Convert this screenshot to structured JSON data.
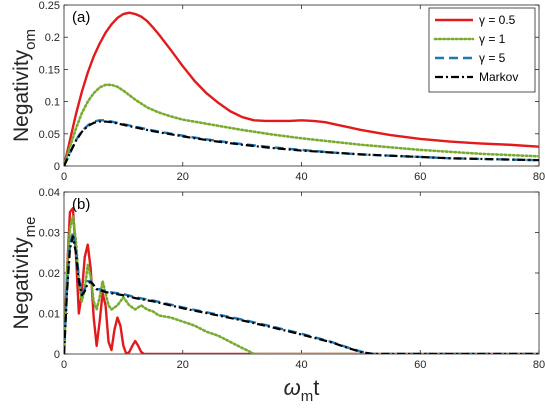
{
  "chart_data": [
    {
      "type": "line",
      "panel_label": "(a)",
      "ylabel_main": "Negativity",
      "ylabel_sub": "om",
      "xlim": [
        0,
        80
      ],
      "ylim": [
        0,
        0.25
      ],
      "xticks": [
        0,
        20,
        40,
        60,
        80
      ],
      "yticks": [
        0,
        0.05,
        0.1,
        0.15,
        0.2,
        0.25
      ],
      "ytick_labels": [
        "0",
        "0.05",
        "0.1",
        "0.15",
        "0.2",
        "0.25"
      ],
      "grid": false,
      "legend": {
        "placement": "top-right",
        "entries": [
          {
            "symbol": "γ",
            "text": " = 0.5"
          },
          {
            "symbol": "γ",
            "text": " = 1"
          },
          {
            "symbol": "γ",
            "text": " = 5"
          },
          {
            "symbol": "",
            "text": "Markov"
          }
        ]
      },
      "series": [
        {
          "style": "solid",
          "color": "#e31a1c",
          "x": [
            0,
            1,
            2,
            3,
            4,
            5,
            6,
            7,
            8,
            9,
            10,
            11,
            12,
            13,
            14,
            15,
            16,
            18,
            20,
            22,
            24,
            26,
            28,
            30,
            32,
            34,
            36,
            38,
            40,
            42,
            44,
            46,
            48,
            50,
            55,
            60,
            65,
            70,
            75,
            80
          ],
          "y": [
            0,
            0.04,
            0.08,
            0.115,
            0.145,
            0.17,
            0.19,
            0.207,
            0.22,
            0.23,
            0.236,
            0.238,
            0.236,
            0.232,
            0.225,
            0.215,
            0.204,
            0.18,
            0.155,
            0.132,
            0.113,
            0.098,
            0.085,
            0.076,
            0.071,
            0.07,
            0.07,
            0.07,
            0.071,
            0.07,
            0.068,
            0.064,
            0.06,
            0.056,
            0.048,
            0.042,
            0.038,
            0.035,
            0.033,
            0.03
          ]
        },
        {
          "style": "dotted",
          "color": "#77ac30",
          "x": [
            0,
            1,
            2,
            3,
            4,
            5,
            6,
            7,
            8,
            9,
            10,
            12,
            14,
            16,
            18,
            20,
            25,
            30,
            35,
            40,
            45,
            50,
            55,
            60,
            65,
            70,
            75,
            80
          ],
          "y": [
            0,
            0.03,
            0.058,
            0.082,
            0.1,
            0.113,
            0.122,
            0.126,
            0.126,
            0.123,
            0.117,
            0.103,
            0.091,
            0.083,
            0.077,
            0.072,
            0.064,
            0.056,
            0.049,
            0.043,
            0.038,
            0.033,
            0.029,
            0.025,
            0.022,
            0.019,
            0.017,
            0.015
          ]
        },
        {
          "style": "dashed",
          "color": "#1f77b4",
          "x": [
            0,
            1,
            2,
            3,
            4,
            5,
            6,
            7,
            8,
            10,
            12,
            15,
            20,
            25,
            30,
            35,
            40,
            45,
            50,
            55,
            60,
            65,
            70,
            75,
            80
          ],
          "y": [
            0,
            0.02,
            0.04,
            0.054,
            0.063,
            0.069,
            0.071,
            0.071,
            0.069,
            0.065,
            0.061,
            0.055,
            0.047,
            0.04,
            0.034,
            0.029,
            0.025,
            0.021,
            0.018,
            0.016,
            0.014,
            0.012,
            0.011,
            0.01,
            0.009
          ]
        },
        {
          "style": "dashdot",
          "color": "#000000",
          "x": [
            0,
            1,
            2,
            3,
            4,
            5,
            6,
            7,
            8,
            10,
            12,
            15,
            20,
            25,
            30,
            35,
            40,
            45,
            50,
            55,
            60,
            65,
            70,
            75,
            80
          ],
          "y": [
            0,
            0.02,
            0.039,
            0.053,
            0.062,
            0.067,
            0.069,
            0.069,
            0.068,
            0.064,
            0.06,
            0.054,
            0.046,
            0.039,
            0.033,
            0.028,
            0.024,
            0.021,
            0.018,
            0.016,
            0.014,
            0.012,
            0.011,
            0.01,
            0.009
          ]
        }
      ]
    },
    {
      "type": "line",
      "panel_label": "(b)",
      "ylabel_main": "Negativity",
      "ylabel_sub": "me",
      "xlabel_main": "ω",
      "xlabel_sub": "m",
      "xlabel_tail": "t",
      "xlim": [
        0,
        80
      ],
      "ylim": [
        0,
        0.04
      ],
      "xticks": [
        0,
        20,
        40,
        60,
        80
      ],
      "yticks": [
        0,
        0.01,
        0.02,
        0.03,
        0.04
      ],
      "ytick_labels": [
        "0",
        "0.01",
        "0.02",
        "0.03",
        "0.04"
      ],
      "grid": false,
      "series": [
        {
          "style": "solid",
          "color": "#e31a1c",
          "x": [
            0,
            0.5,
            1,
            1.5,
            2,
            2.5,
            3,
            3.5,
            4,
            4.5,
            5,
            5.5,
            6,
            6.5,
            7,
            7.5,
            8,
            8.5,
            9,
            9.5,
            10,
            10.5,
            11,
            11.5,
            12,
            12.5,
            13,
            13.5,
            14,
            20,
            30,
            40,
            50,
            60,
            70,
            80
          ],
          "y": [
            0,
            0.02,
            0.035,
            0.036,
            0.025,
            0.01,
            0.015,
            0.024,
            0.027,
            0.021,
            0.009,
            0.002,
            0.008,
            0.015,
            0.012,
            0.003,
            0.001,
            0.006,
            0.009,
            0.007,
            0.002,
            0,
            0.0005,
            0.002,
            0.0032,
            0.002,
            0.0005,
            0,
            0,
            0,
            0,
            0,
            0,
            0,
            0,
            0
          ]
        },
        {
          "style": "dotted",
          "color": "#77ac30",
          "x": [
            0,
            0.5,
            1,
            1.5,
            2,
            2.5,
            3,
            3.5,
            4,
            4.5,
            5,
            5.5,
            6,
            6.5,
            7,
            7.5,
            8,
            9,
            10,
            11,
            12,
            13,
            14,
            15,
            16,
            18,
            20,
            22,
            24,
            26,
            28,
            30,
            31,
            32,
            40,
            50,
            60,
            70,
            80
          ],
          "y": [
            0,
            0.02,
            0.031,
            0.034,
            0.028,
            0.018,
            0.013,
            0.016,
            0.022,
            0.019,
            0.013,
            0.011,
            0.014,
            0.018,
            0.015,
            0.012,
            0.011,
            0.012,
            0.014,
            0.012,
            0.011,
            0.012,
            0.011,
            0.0105,
            0.0095,
            0.009,
            0.008,
            0.007,
            0.0055,
            0.0045,
            0.003,
            0.0015,
            0.0008,
            0,
            0,
            0,
            0,
            0,
            0
          ]
        },
        {
          "style": "dashed",
          "color": "#1f77b4",
          "x": [
            0,
            0.5,
            1,
            1.5,
            2,
            2.5,
            3,
            3.5,
            4,
            4.5,
            5,
            5.5,
            6,
            7,
            8,
            10,
            12,
            15,
            20,
            25,
            30,
            35,
            40,
            45,
            48,
            50,
            52,
            60,
            70,
            80
          ],
          "y": [
            0,
            0.016,
            0.027,
            0.03,
            0.026,
            0.019,
            0.015,
            0.016,
            0.018,
            0.018,
            0.017,
            0.016,
            0.016,
            0.0155,
            0.0152,
            0.0148,
            0.014,
            0.0132,
            0.0115,
            0.01,
            0.0085,
            0.0068,
            0.005,
            0.003,
            0.0015,
            0.0006,
            0,
            0,
            0,
            0
          ]
        },
        {
          "style": "dashdot",
          "color": "#000000",
          "x": [
            0,
            0.5,
            1,
            1.5,
            2,
            2.5,
            3,
            3.5,
            4,
            4.5,
            5,
            5.5,
            6,
            7,
            8,
            10,
            12,
            15,
            20,
            25,
            30,
            35,
            40,
            45,
            48,
            50,
            52,
            60,
            70,
            80
          ],
          "y": [
            0,
            0.015,
            0.026,
            0.029,
            0.025,
            0.018,
            0.0145,
            0.0155,
            0.0175,
            0.0178,
            0.017,
            0.016,
            0.0158,
            0.0153,
            0.015,
            0.0145,
            0.0138,
            0.013,
            0.0113,
            0.0098,
            0.0083,
            0.0066,
            0.0048,
            0.0029,
            0.0014,
            0.0005,
            0,
            0,
            0,
            0
          ]
        }
      ]
    }
  ]
}
